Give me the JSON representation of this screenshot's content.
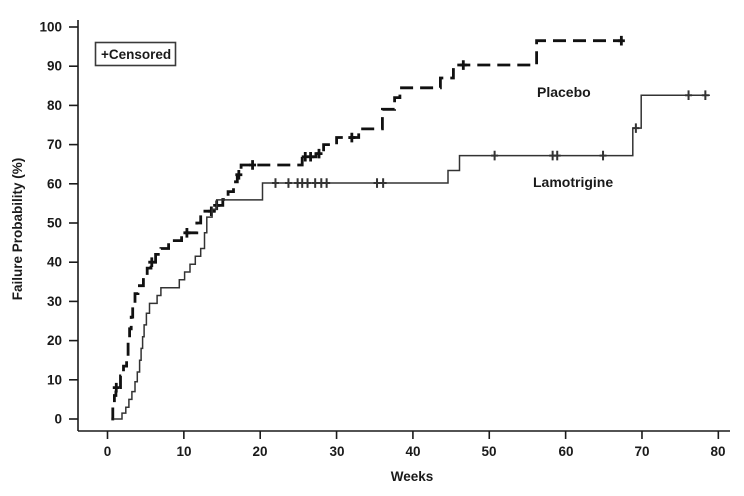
{
  "figure": {
    "legend_label": "+Censored",
    "xlabel": "Weeks",
    "ylabel": "Failure Probability (%)"
  },
  "chart_data": {
    "type": "line",
    "subtype": "kaplan-meier-failure-step-curves",
    "title": "",
    "xlabel": "Weeks",
    "ylabel": "Failure Probability (%)",
    "xlim": [
      0,
      80
    ],
    "ylim": [
      0,
      100
    ],
    "x_ticks": [
      0,
      10,
      20,
      30,
      40,
      50,
      60,
      70,
      80
    ],
    "y_ticks": [
      0,
      10,
      20,
      30,
      40,
      50,
      60,
      70,
      80,
      90,
      100
    ],
    "grid": false,
    "legend": {
      "label": "+Censored",
      "position": "top-left-inside"
    },
    "series": [
      {
        "name": "Placebo",
        "line_style": "dashed",
        "line_width": 2.8,
        "color": "#111111",
        "end_week": 67.5,
        "points": [
          [
            0.5,
            0
          ],
          [
            0.7,
            3
          ],
          [
            0.9,
            6
          ],
          [
            1.1,
            8
          ],
          [
            1.7,
            11
          ],
          [
            2.1,
            13.5
          ],
          [
            2.5,
            16
          ],
          [
            2.7,
            20
          ],
          [
            2.9,
            23
          ],
          [
            3.1,
            26
          ],
          [
            3.3,
            29
          ],
          [
            3.6,
            32
          ],
          [
            4.0,
            34
          ],
          [
            4.7,
            36.5
          ],
          [
            5.2,
            38.5
          ],
          [
            5.7,
            40
          ],
          [
            6.3,
            42
          ],
          [
            7.0,
            43.5
          ],
          [
            8.0,
            45.5
          ],
          [
            9.7,
            47.5
          ],
          [
            11.7,
            50
          ],
          [
            12.2,
            53
          ],
          [
            14.0,
            54.5
          ],
          [
            15.1,
            56
          ],
          [
            15.8,
            58
          ],
          [
            16.5,
            60.5
          ],
          [
            17.0,
            62.3
          ],
          [
            17.5,
            64.8
          ],
          [
            25.5,
            66.9
          ],
          [
            27.3,
            67.7
          ],
          [
            28.3,
            70
          ],
          [
            30.0,
            71.8
          ],
          [
            32.9,
            74
          ],
          [
            36.0,
            79
          ],
          [
            37.6,
            82
          ],
          [
            38.3,
            84.5
          ],
          [
            43.6,
            87
          ],
          [
            45.3,
            90.3
          ],
          [
            56.2,
            96.5
          ]
        ],
        "censor_marks": [
          [
            1.15,
            8
          ],
          [
            5.8,
            40
          ],
          [
            10.4,
            47.5
          ],
          [
            13.6,
            53
          ],
          [
            14.3,
            54.5
          ],
          [
            17.2,
            62.3
          ],
          [
            19.0,
            64.8
          ],
          [
            25.9,
            66.9
          ],
          [
            26.6,
            66.9
          ],
          [
            27.7,
            67.7
          ],
          [
            32.0,
            71.8
          ],
          [
            46.6,
            90.3
          ],
          [
            67.3,
            96.5
          ]
        ]
      },
      {
        "name": "Lamotrigine",
        "line_style": "solid",
        "line_width": 1.5,
        "color": "#333333",
        "end_week": 78.9,
        "points": [
          [
            0.8,
            0
          ],
          [
            1.9,
            1.5
          ],
          [
            2.4,
            3
          ],
          [
            2.8,
            5
          ],
          [
            3.2,
            7
          ],
          [
            3.6,
            9.5
          ],
          [
            3.9,
            12
          ],
          [
            4.2,
            15
          ],
          [
            4.4,
            18
          ],
          [
            4.6,
            21
          ],
          [
            4.8,
            24
          ],
          [
            5.1,
            27
          ],
          [
            5.5,
            29.5
          ],
          [
            6.5,
            31.5
          ],
          [
            7.0,
            33.5
          ],
          [
            9.4,
            35.5
          ],
          [
            10.1,
            37.5
          ],
          [
            10.8,
            39.5
          ],
          [
            11.5,
            41.5
          ],
          [
            12.2,
            43.5
          ],
          [
            12.7,
            47.5
          ],
          [
            13.0,
            51.5
          ],
          [
            13.7,
            53.5
          ],
          [
            14.3,
            55.9
          ],
          [
            20.3,
            60.2
          ],
          [
            44.6,
            63.4
          ],
          [
            46.1,
            67.2
          ],
          [
            68.8,
            74.2
          ],
          [
            69.9,
            82.6
          ]
        ],
        "censor_marks": [
          [
            22.0,
            60.2
          ],
          [
            23.7,
            60.2
          ],
          [
            24.9,
            60.2
          ],
          [
            25.5,
            60.2
          ],
          [
            26.2,
            60.2
          ],
          [
            27.2,
            60.2
          ],
          [
            28.0,
            60.2
          ],
          [
            28.7,
            60.2
          ],
          [
            35.3,
            60.2
          ],
          [
            36.1,
            60.2
          ],
          [
            50.7,
            67.2
          ],
          [
            58.3,
            67.2
          ],
          [
            58.9,
            67.2
          ],
          [
            64.9,
            67.2
          ],
          [
            69.2,
            74.2
          ],
          [
            76.1,
            82.6
          ],
          [
            78.3,
            82.6
          ]
        ]
      }
    ]
  }
}
